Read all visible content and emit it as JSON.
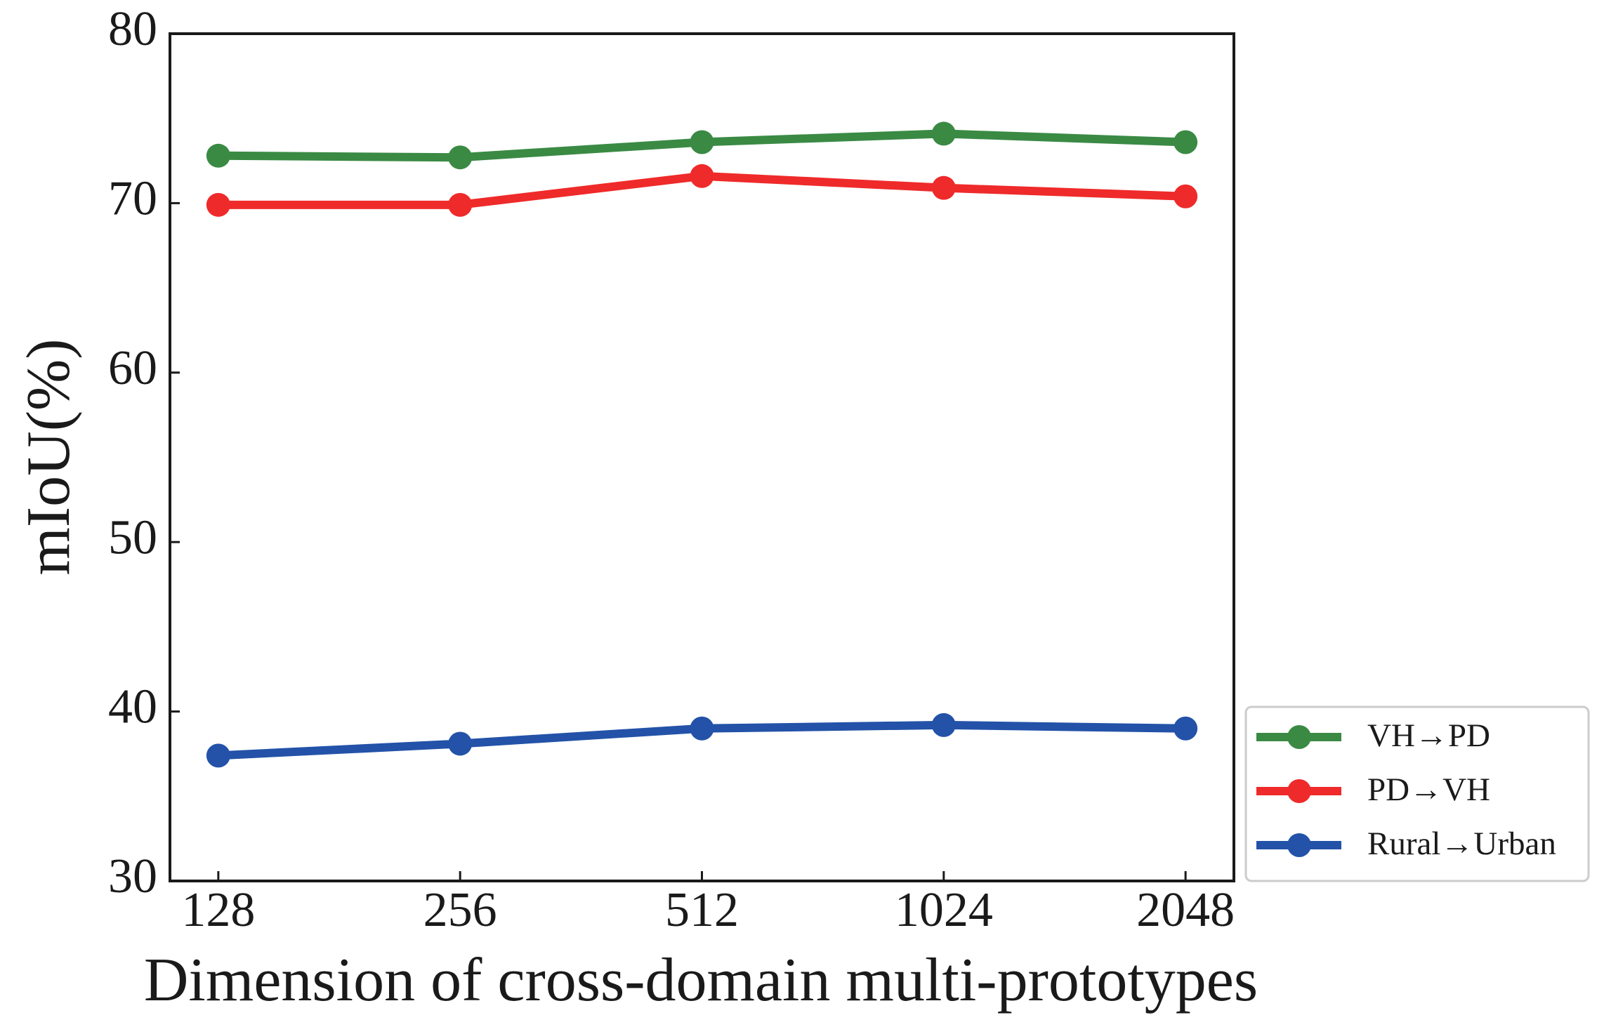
{
  "chart_data": {
    "type": "line",
    "x_label": "Dimension of cross-domain multi-prototypes",
    "y_label": "mIoU(%)",
    "categories": [
      "128",
      "256",
      "512",
      "1024",
      "2048"
    ],
    "series": [
      {
        "name": "VH→PD",
        "color": "#3a8a44",
        "values": [
          72.8,
          72.7,
          73.6,
          74.1,
          73.6
        ]
      },
      {
        "name": "PD→VH",
        "color": "#ef2a2a",
        "values": [
          69.9,
          69.9,
          71.6,
          70.9,
          70.4
        ]
      },
      {
        "name": "Rural→Urban",
        "color": "#2352a8",
        "values": [
          37.4,
          38.1,
          39.0,
          39.2,
          39.0
        ]
      }
    ],
    "ylim": [
      30,
      80
    ],
    "yticks": [
      30,
      40,
      50,
      60,
      70,
      80
    ],
    "grid": false,
    "legend": "outside lower right"
  }
}
